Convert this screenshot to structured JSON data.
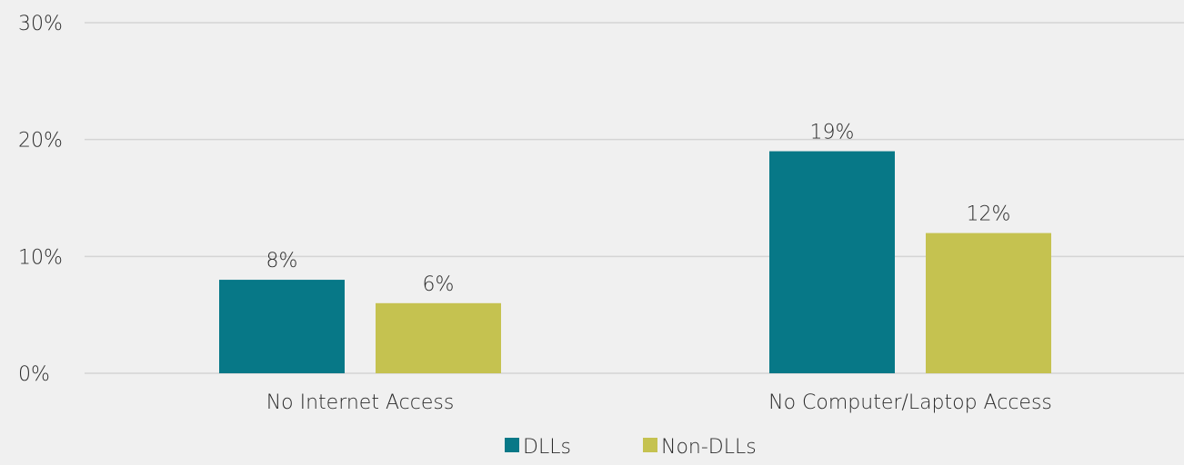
{
  "chart_data": {
    "type": "bar",
    "categories": [
      "No Internet Access",
      "No Computer/Laptop Access"
    ],
    "series": [
      {
        "name": "DLLs",
        "values": [
          8,
          19
        ],
        "labels": [
          "8%",
          "19%"
        ],
        "color": "#077887"
      },
      {
        "name": "Non-DLLs",
        "values": [
          6,
          12
        ],
        "labels": [
          "6%",
          "12%"
        ],
        "color": "#c5c250"
      }
    ],
    "ylim": [
      0,
      30
    ],
    "yticks": [
      0,
      10,
      20,
      30
    ],
    "ytick_labels": [
      "0%",
      "10%",
      "20%",
      "30%"
    ],
    "grid": true,
    "legend_position": "bottom"
  },
  "colors": {
    "background": "#f0f0f0",
    "gridline": "#d4d4d4",
    "text": "#2b2b2b"
  }
}
